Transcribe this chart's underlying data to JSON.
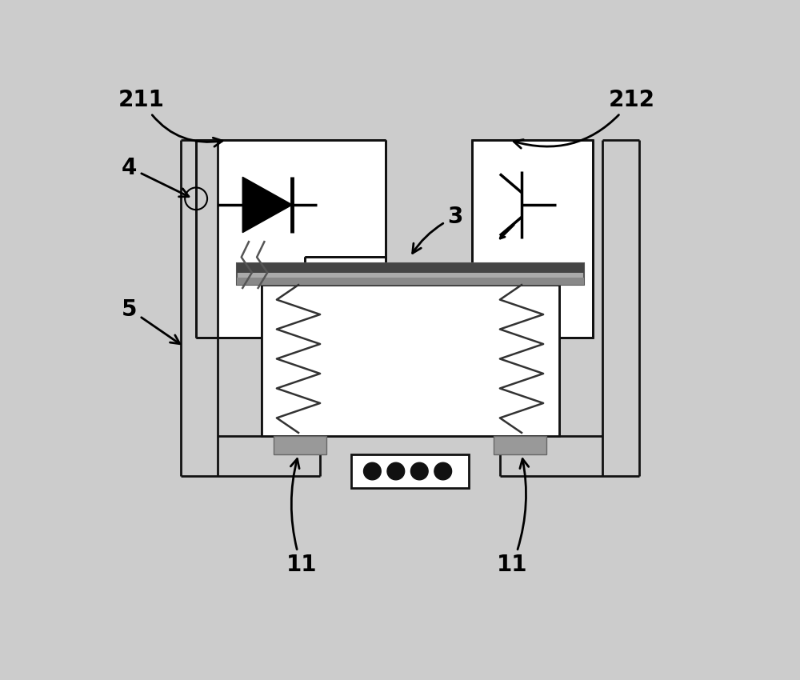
{
  "bg_color": "#cccccc",
  "line_color": "#111111",
  "lw": 2.0,
  "fig_width": 10.0,
  "fig_height": 8.5,
  "label_fontsize": 20
}
